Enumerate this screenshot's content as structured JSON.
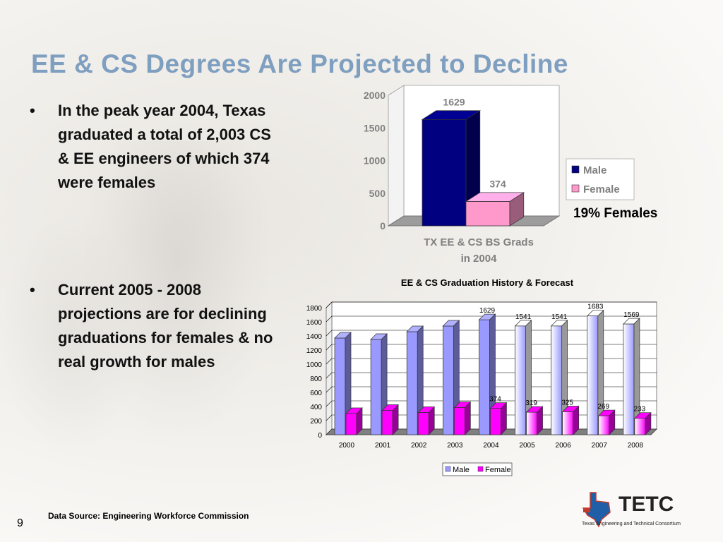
{
  "slide": {
    "title": "EE & CS Degrees Are Projected to Decline",
    "bullet_symbol": "•",
    "bullets": [
      "In the peak year 2004, Texas graduated a total of 2,003 CS & EE engineers of which 374 were females",
      "Current 2005 - 2008 projections are for declining graduations for females & no real growth for males"
    ],
    "annotation": "19% Females",
    "source": "Data Source: Engineering Workforce Commission",
    "page_number": "9",
    "logo": {
      "text": "TETC",
      "subtitle": "Texas Engineering and Technical Consortium"
    }
  },
  "chart_data": [
    {
      "type": "bar",
      "title": "",
      "categories": [
        "TX EE & CS BS Grads in 2004"
      ],
      "xlabel_lines": [
        "TX EE & CS BS Grads",
        "in 2004"
      ],
      "series": [
        {
          "name": "Male",
          "values": [
            1629
          ],
          "color": "#000080"
        },
        {
          "name": "Female",
          "values": [
            374
          ],
          "color": "#ff99cc"
        }
      ],
      "ylim": [
        0,
        2000
      ],
      "yticks": [
        0,
        500,
        1000,
        1500,
        2000
      ],
      "data_labels": [
        "1629",
        "374"
      ],
      "legend": "right",
      "style": "3d"
    },
    {
      "type": "bar",
      "title": "EE & CS Graduation History & Forecast",
      "categories": [
        "2000",
        "2001",
        "2002",
        "2003",
        "2004",
        "2005",
        "2006",
        "2007",
        "2008"
      ],
      "series": [
        {
          "name": "Male",
          "values": [
            1370,
            1350,
            1460,
            1540,
            1629,
            1541,
            1541,
            1683,
            1569
          ],
          "color": "#9999ff"
        },
        {
          "name": "Female",
          "values": [
            300,
            345,
            315,
            385,
            374,
            319,
            325,
            269,
            233
          ],
          "color": "#ff00ff"
        }
      ],
      "male_labels": [
        "",
        "",
        "",
        "",
        "1629",
        "1541",
        "1541",
        "1683",
        "1569"
      ],
      "female_labels": [
        "",
        "",
        "",
        "",
        "374",
        "319",
        "325",
        "269",
        "233"
      ],
      "ylim": [
        0,
        1800
      ],
      "yticks": [
        0,
        200,
        400,
        600,
        800,
        1000,
        1200,
        1400,
        1600,
        1800
      ],
      "grid": true,
      "legend": "bottom",
      "style": "3d"
    }
  ]
}
